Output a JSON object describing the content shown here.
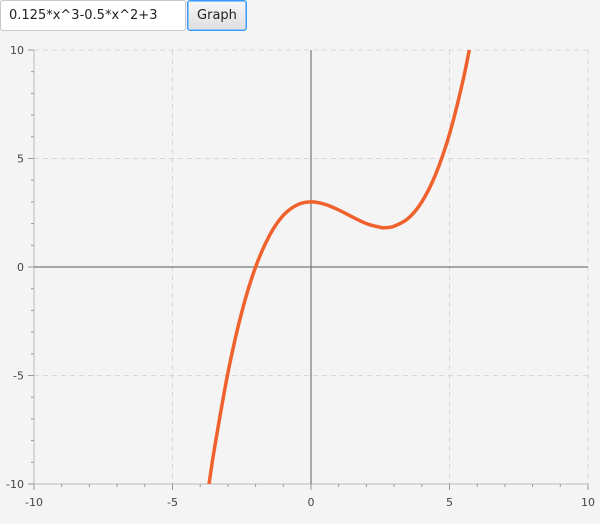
{
  "toolbar": {
    "expression_value": "0.125*x^3-0.5*x^2+3",
    "graph_label": "Graph"
  },
  "chart_data": {
    "type": "line",
    "title": "",
    "xlabel": "",
    "ylabel": "",
    "xlim": [
      -10,
      10
    ],
    "ylim": [
      -10,
      10
    ],
    "x_ticks": [
      -10,
      -5,
      0,
      5,
      10
    ],
    "y_ticks": [
      -10,
      -5,
      0,
      5,
      10
    ],
    "x_tick_labels": [
      "-10",
      "-5",
      "0",
      "5",
      "10"
    ],
    "y_tick_labels": [
      "-10",
      "-5",
      "0",
      "5",
      "10"
    ],
    "grid": true,
    "series": [
      {
        "color": "#f0622d",
        "x": [
          -3.7,
          -3.5,
          -3,
          -2.5,
          -2,
          -1.5,
          -1,
          -0.5,
          0,
          0.5,
          1,
          1.5,
          2,
          2.5,
          2.67,
          3,
          3.5,
          4,
          4.5,
          5,
          5.5,
          5.85
        ],
        "y": [
          -10.18,
          -8.48,
          -4.88,
          -2.08,
          0,
          1.45,
          2.38,
          2.86,
          3,
          2.89,
          2.63,
          2.3,
          2,
          1.83,
          1.81,
          1.88,
          2.23,
          3,
          4.27,
          6.13,
          8.67,
          10.92
        ]
      }
    ]
  }
}
